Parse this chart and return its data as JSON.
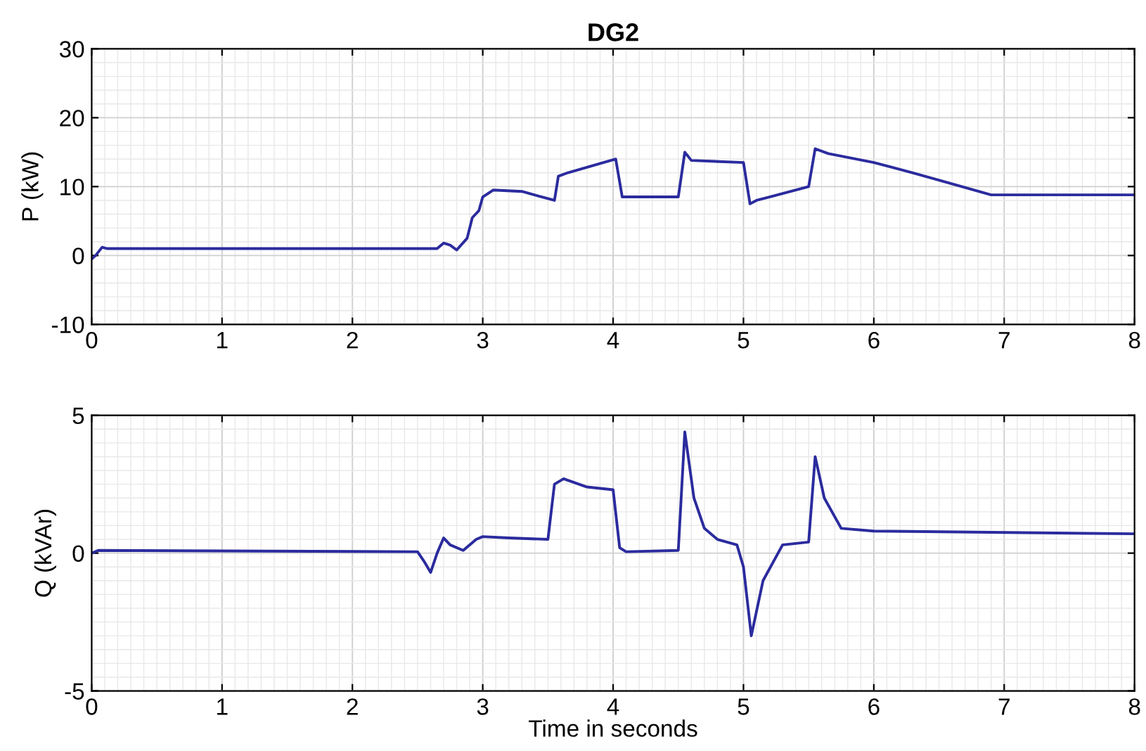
{
  "chart_data": [
    {
      "type": "line",
      "title": "DG2",
      "ylabel": "P (kW)",
      "xlim": [
        0,
        8
      ],
      "ylim": [
        -10,
        30
      ],
      "xticks": [
        0,
        1,
        2,
        3,
        4,
        5,
        6,
        7,
        8
      ],
      "yticks": [
        -10,
        0,
        10,
        20,
        30
      ],
      "grid": true,
      "series": [
        {
          "color": "#2b2b9e",
          "x": [
            0,
            0.03,
            0.08,
            0.12,
            2.65,
            2.7,
            2.75,
            2.8,
            2.88,
            2.92,
            2.97,
            3.0,
            3.08,
            3.3,
            3.55,
            3.58,
            3.65,
            4.02,
            4.07,
            4.5,
            4.55,
            4.6,
            5.0,
            5.05,
            5.1,
            5.2,
            5.5,
            5.55,
            5.65,
            6.0,
            6.3,
            6.9,
            8
          ],
          "values": [
            -0.5,
            0,
            1.2,
            1.0,
            1.0,
            1.8,
            1.5,
            0.8,
            2.5,
            5.5,
            6.5,
            8.5,
            9.5,
            9.3,
            8,
            11.5,
            12,
            14,
            8.5,
            8.5,
            15,
            13.8,
            13.5,
            7.5,
            8,
            8.5,
            10,
            15.5,
            14.8,
            13.5,
            12,
            8.8,
            8.8
          ]
        }
      ]
    },
    {
      "type": "line",
      "xlabel": "Time in seconds",
      "ylabel": "Q (kVAr)",
      "xlim": [
        0,
        8
      ],
      "ylim": [
        -5,
        5
      ],
      "xticks": [
        0,
        1,
        2,
        3,
        4,
        5,
        6,
        7,
        8
      ],
      "yticks": [
        -5,
        0,
        5
      ],
      "grid": true,
      "series": [
        {
          "color": "#2b2b9e",
          "x": [
            0,
            0.05,
            2.5,
            2.55,
            2.6,
            2.65,
            2.7,
            2.75,
            2.85,
            2.95,
            3.0,
            3.2,
            3.5,
            3.55,
            3.62,
            3.8,
            4.0,
            4.05,
            4.1,
            4.5,
            4.55,
            4.62,
            4.7,
            4.8,
            4.95,
            5.0,
            5.06,
            5.15,
            5.3,
            5.5,
            5.55,
            5.62,
            5.75,
            6.0,
            8
          ],
          "values": [
            0,
            0.1,
            0.05,
            -0.3,
            -0.7,
            0,
            0.55,
            0.3,
            0.1,
            0.5,
            0.6,
            0.55,
            0.5,
            2.5,
            2.7,
            2.4,
            2.3,
            0.2,
            0.05,
            0.1,
            4.4,
            2,
            0.9,
            0.5,
            0.3,
            -0.5,
            -3.0,
            -1,
            0.3,
            0.4,
            3.5,
            2,
            0.9,
            0.8,
            0.7
          ]
        }
      ]
    }
  ]
}
